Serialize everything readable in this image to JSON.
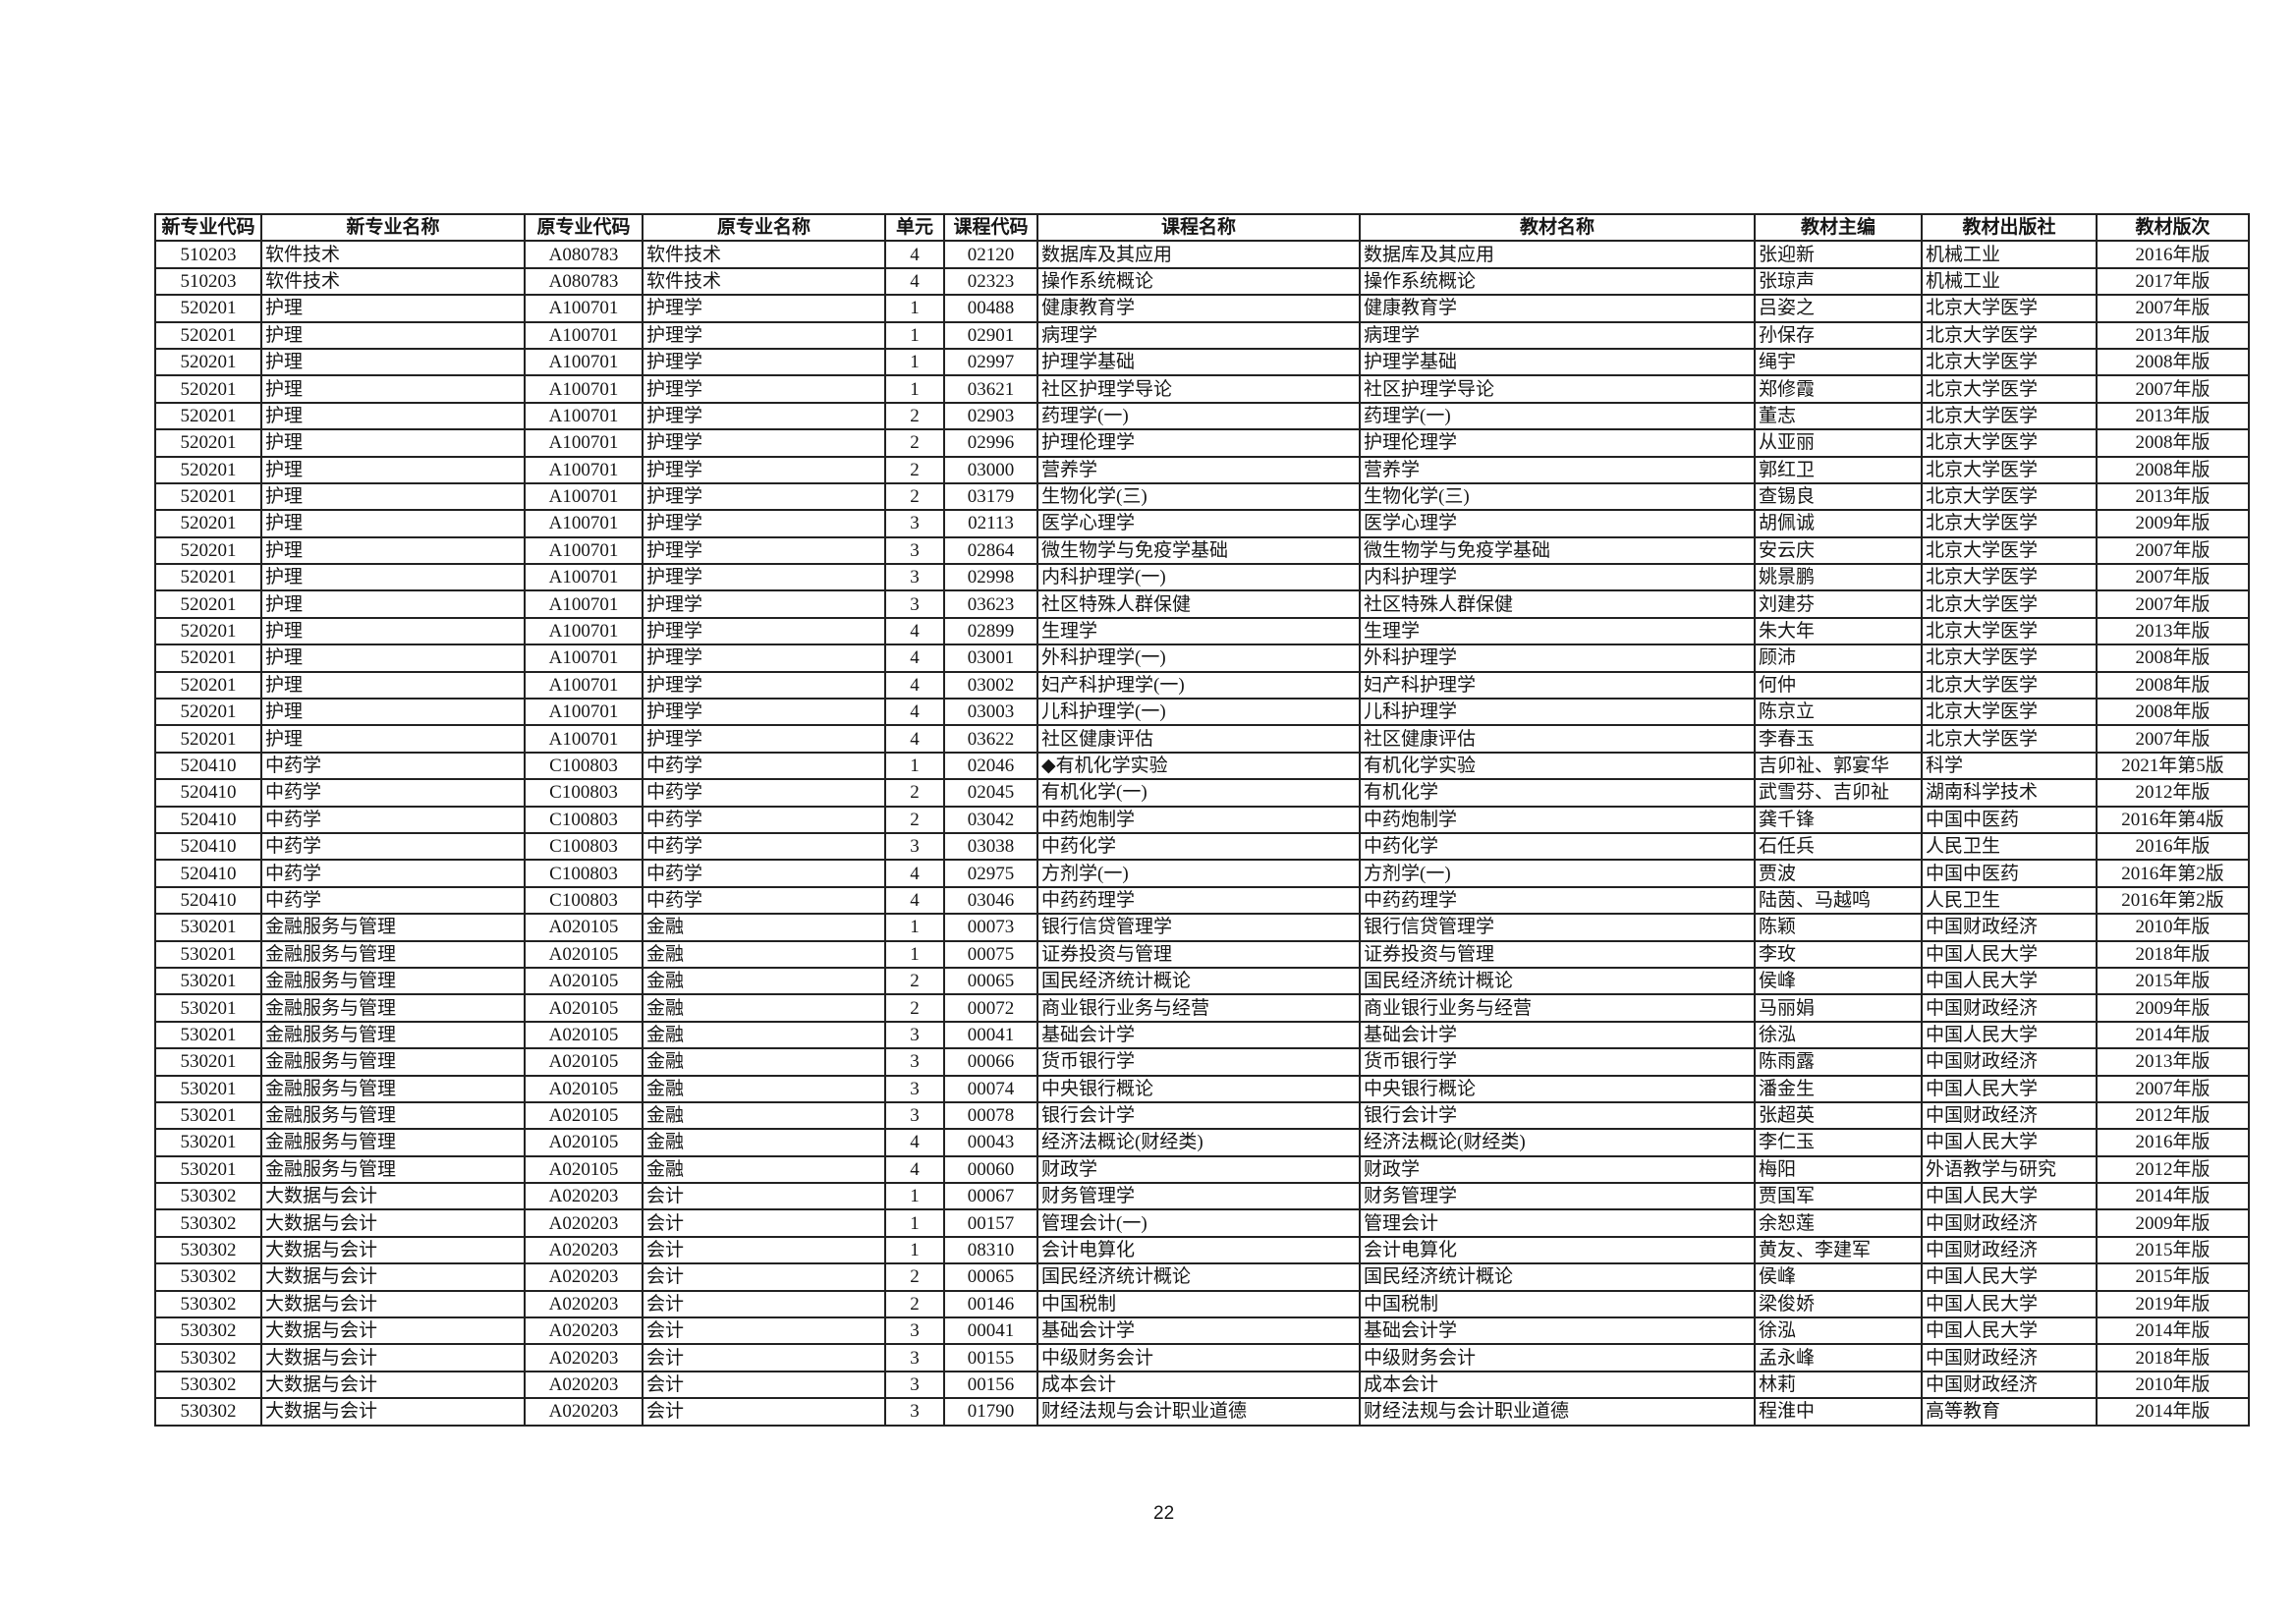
{
  "table": {
    "headers": [
      "新专业代码",
      "新专业名称",
      "原专业代码",
      "原专业名称",
      "单元",
      "课程代码",
      "课程名称",
      "教材名称",
      "教材主编",
      "教材出版社",
      "教材版次"
    ],
    "rows": [
      [
        "510203",
        "软件技术",
        "A080783",
        "软件技术",
        "4",
        "02120",
        "数据库及其应用",
        "数据库及其应用",
        "张迎新",
        "机械工业",
        "2016年版"
      ],
      [
        "510203",
        "软件技术",
        "A080783",
        "软件技术",
        "4",
        "02323",
        "操作系统概论",
        "操作系统概论",
        "张琼声",
        "机械工业",
        "2017年版"
      ],
      [
        "520201",
        "护理",
        "A100701",
        "护理学",
        "1",
        "00488",
        "健康教育学",
        "健康教育学",
        "吕姿之",
        "北京大学医学",
        "2007年版"
      ],
      [
        "520201",
        "护理",
        "A100701",
        "护理学",
        "1",
        "02901",
        "病理学",
        "病理学",
        "孙保存",
        "北京大学医学",
        "2013年版"
      ],
      [
        "520201",
        "护理",
        "A100701",
        "护理学",
        "1",
        "02997",
        "护理学基础",
        "护理学基础",
        "绳宇",
        "北京大学医学",
        "2008年版"
      ],
      [
        "520201",
        "护理",
        "A100701",
        "护理学",
        "1",
        "03621",
        "社区护理学导论",
        "社区护理学导论",
        "郑修霞",
        "北京大学医学",
        "2007年版"
      ],
      [
        "520201",
        "护理",
        "A100701",
        "护理学",
        "2",
        "02903",
        "药理学(一)",
        "药理学(一)",
        "董志",
        "北京大学医学",
        "2013年版"
      ],
      [
        "520201",
        "护理",
        "A100701",
        "护理学",
        "2",
        "02996",
        "护理伦理学",
        "护理伦理学",
        "从亚丽",
        "北京大学医学",
        "2008年版"
      ],
      [
        "520201",
        "护理",
        "A100701",
        "护理学",
        "2",
        "03000",
        "营养学",
        "营养学",
        "郭红卫",
        "北京大学医学",
        "2008年版"
      ],
      [
        "520201",
        "护理",
        "A100701",
        "护理学",
        "2",
        "03179",
        "生物化学(三)",
        "生物化学(三)",
        "查锡良",
        "北京大学医学",
        "2013年版"
      ],
      [
        "520201",
        "护理",
        "A100701",
        "护理学",
        "3",
        "02113",
        "医学心理学",
        "医学心理学",
        "胡佩诚",
        "北京大学医学",
        "2009年版"
      ],
      [
        "520201",
        "护理",
        "A100701",
        "护理学",
        "3",
        "02864",
        "微生物学与免疫学基础",
        "微生物学与免疫学基础",
        "安云庆",
        "北京大学医学",
        "2007年版"
      ],
      [
        "520201",
        "护理",
        "A100701",
        "护理学",
        "3",
        "02998",
        "内科护理学(一)",
        "内科护理学",
        "姚景鹏",
        "北京大学医学",
        "2007年版"
      ],
      [
        "520201",
        "护理",
        "A100701",
        "护理学",
        "3",
        "03623",
        "社区特殊人群保健",
        "社区特殊人群保健",
        "刘建芬",
        "北京大学医学",
        "2007年版"
      ],
      [
        "520201",
        "护理",
        "A100701",
        "护理学",
        "4",
        "02899",
        "生理学",
        "生理学",
        "朱大年",
        "北京大学医学",
        "2013年版"
      ],
      [
        "520201",
        "护理",
        "A100701",
        "护理学",
        "4",
        "03001",
        "外科护理学(一)",
        "外科护理学",
        "顾沛",
        "北京大学医学",
        "2008年版"
      ],
      [
        "520201",
        "护理",
        "A100701",
        "护理学",
        "4",
        "03002",
        "妇产科护理学(一)",
        "妇产科护理学",
        "何仲",
        "北京大学医学",
        "2008年版"
      ],
      [
        "520201",
        "护理",
        "A100701",
        "护理学",
        "4",
        "03003",
        "儿科护理学(一)",
        "儿科护理学",
        "陈京立",
        "北京大学医学",
        "2008年版"
      ],
      [
        "520201",
        "护理",
        "A100701",
        "护理学",
        "4",
        "03622",
        "社区健康评估",
        "社区健康评估",
        "李春玉",
        "北京大学医学",
        "2007年版"
      ],
      [
        "520410",
        "中药学",
        "C100803",
        "中药学",
        "1",
        "02046",
        "◆有机化学实验",
        "有机化学实验",
        "吉卯祉、郭宴华",
        "科学",
        "2021年第5版"
      ],
      [
        "520410",
        "中药学",
        "C100803",
        "中药学",
        "2",
        "02045",
        "有机化学(一)",
        "有机化学",
        "武雪芬、吉卯祉",
        "湖南科学技术",
        "2012年版"
      ],
      [
        "520410",
        "中药学",
        "C100803",
        "中药学",
        "2",
        "03042",
        "中药炮制学",
        "中药炮制学",
        "龚千锋",
        "中国中医药",
        "2016年第4版"
      ],
      [
        "520410",
        "中药学",
        "C100803",
        "中药学",
        "3",
        "03038",
        "中药化学",
        "中药化学",
        "石任兵",
        "人民卫生",
        "2016年版"
      ],
      [
        "520410",
        "中药学",
        "C100803",
        "中药学",
        "4",
        "02975",
        "方剂学(一)",
        "方剂学(一)",
        "贾波",
        "中国中医药",
        "2016年第2版"
      ],
      [
        "520410",
        "中药学",
        "C100803",
        "中药学",
        "4",
        "03046",
        "中药药理学",
        "中药药理学",
        "陆茵、马越鸣",
        "人民卫生",
        "2016年第2版"
      ],
      [
        "530201",
        "金融服务与管理",
        "A020105",
        "金融",
        "1",
        "00073",
        "银行信贷管理学",
        "银行信贷管理学",
        "陈颖",
        "中国财政经济",
        "2010年版"
      ],
      [
        "530201",
        "金融服务与管理",
        "A020105",
        "金融",
        "1",
        "00075",
        "证券投资与管理",
        "证券投资与管理",
        "李玫",
        "中国人民大学",
        "2018年版"
      ],
      [
        "530201",
        "金融服务与管理",
        "A020105",
        "金融",
        "2",
        "00065",
        "国民经济统计概论",
        "国民经济统计概论",
        "侯峰",
        "中国人民大学",
        "2015年版"
      ],
      [
        "530201",
        "金融服务与管理",
        "A020105",
        "金融",
        "2",
        "00072",
        "商业银行业务与经营",
        "商业银行业务与经营",
        "马丽娟",
        "中国财政经济",
        "2009年版"
      ],
      [
        "530201",
        "金融服务与管理",
        "A020105",
        "金融",
        "3",
        "00041",
        "基础会计学",
        "基础会计学",
        "徐泓",
        "中国人民大学",
        "2014年版"
      ],
      [
        "530201",
        "金融服务与管理",
        "A020105",
        "金融",
        "3",
        "00066",
        "货币银行学",
        "货币银行学",
        "陈雨露",
        "中国财政经济",
        "2013年版"
      ],
      [
        "530201",
        "金融服务与管理",
        "A020105",
        "金融",
        "3",
        "00074",
        "中央银行概论",
        "中央银行概论",
        "潘金生",
        "中国人民大学",
        "2007年版"
      ],
      [
        "530201",
        "金融服务与管理",
        "A020105",
        "金融",
        "3",
        "00078",
        "银行会计学",
        "银行会计学",
        "张超英",
        "中国财政经济",
        "2012年版"
      ],
      [
        "530201",
        "金融服务与管理",
        "A020105",
        "金融",
        "4",
        "00043",
        "经济法概论(财经类)",
        "经济法概论(财经类)",
        "李仁玉",
        "中国人民大学",
        "2016年版"
      ],
      [
        "530201",
        "金融服务与管理",
        "A020105",
        "金融",
        "4",
        "00060",
        "财政学",
        "财政学",
        "梅阳",
        "外语教学与研究",
        "2012年版"
      ],
      [
        "530302",
        "大数据与会计",
        "A020203",
        "会计",
        "1",
        "00067",
        "财务管理学",
        "财务管理学",
        "贾国军",
        "中国人民大学",
        "2014年版"
      ],
      [
        "530302",
        "大数据与会计",
        "A020203",
        "会计",
        "1",
        "00157",
        "管理会计(一)",
        "管理会计",
        "余恕莲",
        "中国财政经济",
        "2009年版"
      ],
      [
        "530302",
        "大数据与会计",
        "A020203",
        "会计",
        "1",
        "08310",
        "会计电算化",
        "会计电算化",
        "黄友、李建军",
        "中国财政经济",
        "2015年版"
      ],
      [
        "530302",
        "大数据与会计",
        "A020203",
        "会计",
        "2",
        "00065",
        "国民经济统计概论",
        "国民经济统计概论",
        "侯峰",
        "中国人民大学",
        "2015年版"
      ],
      [
        "530302",
        "大数据与会计",
        "A020203",
        "会计",
        "2",
        "00146",
        "中国税制",
        "中国税制",
        "梁俊娇",
        "中国人民大学",
        "2019年版"
      ],
      [
        "530302",
        "大数据与会计",
        "A020203",
        "会计",
        "3",
        "00041",
        "基础会计学",
        "基础会计学",
        "徐泓",
        "中国人民大学",
        "2014年版"
      ],
      [
        "530302",
        "大数据与会计",
        "A020203",
        "会计",
        "3",
        "00155",
        "中级财务会计",
        "中级财务会计",
        "孟永峰",
        "中国财政经济",
        "2018年版"
      ],
      [
        "530302",
        "大数据与会计",
        "A020203",
        "会计",
        "3",
        "00156",
        "成本会计",
        "成本会计",
        "林莉",
        "中国财政经济",
        "2010年版"
      ],
      [
        "530302",
        "大数据与会计",
        "A020203",
        "会计",
        "3",
        "01790",
        "财经法规与会计职业道德",
        "财经法规与会计职业道德",
        "程淮中",
        "高等教育",
        "2014年版"
      ]
    ]
  },
  "footer": {
    "page_number": "22"
  }
}
